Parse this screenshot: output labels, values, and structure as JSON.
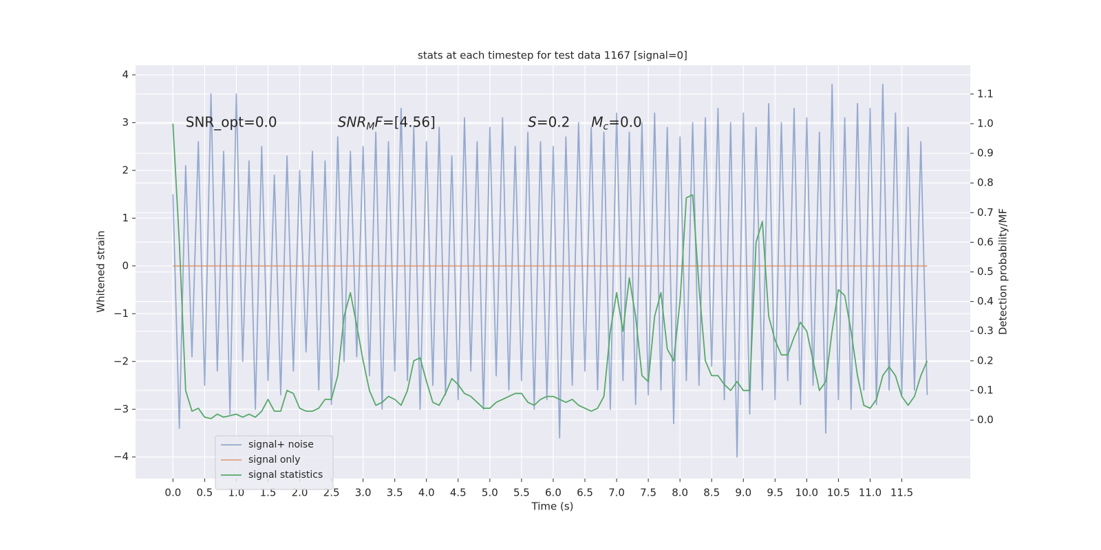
{
  "chart_data": {
    "type": "line",
    "title": "stats at each timestep for test data 1167 [signal=0]",
    "xlabel": "Time (s)",
    "ylabel": "Whitened strain",
    "y2label": "Detection probability/MF",
    "x": [
      0,
      0.1,
      0.2,
      0.3,
      0.4,
      0.5,
      0.6,
      0.7,
      0.8,
      0.9,
      1,
      1.1,
      1.2,
      1.3,
      1.4,
      1.5,
      1.6,
      1.7,
      1.8,
      1.9,
      2,
      2.1,
      2.2,
      2.3,
      2.4,
      2.5,
      2.6,
      2.7,
      2.8,
      2.9,
      3,
      3.1,
      3.2,
      3.3,
      3.4,
      3.5,
      3.6,
      3.7,
      3.8,
      3.9,
      4,
      4.1,
      4.2,
      4.3,
      4.4,
      4.5,
      4.6,
      4.7,
      4.8,
      4.9,
      5,
      5.1,
      5.2,
      5.3,
      5.4,
      5.5,
      5.6,
      5.7,
      5.8,
      5.9,
      6,
      6.1,
      6.2,
      6.3,
      6.4,
      6.5,
      6.6,
      6.7,
      6.8,
      6.9,
      7,
      7.1,
      7.2,
      7.3,
      7.4,
      7.5,
      7.6,
      7.7,
      7.8,
      7.9,
      8,
      8.1,
      8.2,
      8.3,
      8.4,
      8.5,
      8.6,
      8.7,
      8.8,
      8.9,
      9,
      9.1,
      9.2,
      9.3,
      9.4,
      9.5,
      9.6,
      9.7,
      9.8,
      9.9,
      10,
      10.1,
      10.2,
      10.3,
      10.4,
      10.5,
      10.6,
      10.7,
      10.8,
      10.9,
      11,
      11.1,
      11.2,
      11.3,
      11.4,
      11.5,
      11.6,
      11.7,
      11.8,
      11.9
    ],
    "series": [
      {
        "name": "signal+ noise",
        "color": "#4c72b0",
        "opacity": 0.55,
        "axis": "y",
        "values": [
          1.5,
          -3.4,
          2.1,
          -1.9,
          2.6,
          -2.5,
          3.6,
          -2.2,
          2.4,
          -3.1,
          3.6,
          -2.0,
          2.2,
          -3.0,
          2.5,
          -2.4,
          1.9,
          -2.7,
          2.3,
          -2.2,
          2.0,
          -1.8,
          2.4,
          -2.6,
          2.2,
          -2.9,
          2.7,
          -2.0,
          2.4,
          -1.9,
          2.5,
          -2.3,
          2.8,
          -3.0,
          2.6,
          -2.2,
          3.3,
          -2.4,
          2.9,
          -3.0,
          2.6,
          -2.5,
          2.9,
          -2.7,
          2.3,
          -2.8,
          3.1,
          -2.2,
          2.6,
          -3.0,
          2.9,
          -2.3,
          3.1,
          -2.6,
          2.5,
          -2.4,
          2.8,
          -3.0,
          2.6,
          -2.8,
          2.5,
          -3.6,
          2.7,
          -2.5,
          3.0,
          -2.2,
          2.9,
          -2.6,
          2.8,
          -3.0,
          3.2,
          -2.4,
          2.8,
          -2.9,
          3.0,
          -2.7,
          3.2,
          -2.6,
          2.9,
          -3.3,
          2.7,
          -2.4,
          3.0,
          -2.5,
          3.1,
          -2.1,
          3.3,
          -2.8,
          3.0,
          -4.0,
          3.2,
          -3.1,
          2.9,
          -2.6,
          3.4,
          -2.8,
          3.0,
          -2.4,
          3.3,
          -2.9,
          3.1,
          -2.5,
          2.8,
          -3.5,
          3.8,
          -2.8,
          3.1,
          -3.0,
          3.4,
          -2.6,
          3.3,
          -2.9,
          3.8,
          -2.6,
          3.2,
          -2.7,
          2.9,
          -2.6,
          2.6,
          -2.7
        ]
      },
      {
        "name": "signal only",
        "color": "#dd8452",
        "opacity": 0.7,
        "axis": "y",
        "values": [
          0,
          0,
          0,
          0,
          0,
          0,
          0,
          0,
          0,
          0,
          0,
          0,
          0,
          0,
          0,
          0,
          0,
          0,
          0,
          0,
          0,
          0,
          0,
          0,
          0,
          0,
          0,
          0,
          0,
          0,
          0,
          0,
          0,
          0,
          0,
          0,
          0,
          0,
          0,
          0,
          0,
          0,
          0,
          0,
          0,
          0,
          0,
          0,
          0,
          0,
          0,
          0,
          0,
          0,
          0,
          0,
          0,
          0,
          0,
          0,
          0,
          0,
          0,
          0,
          0,
          0,
          0,
          0,
          0,
          0,
          0,
          0,
          0,
          0,
          0,
          0,
          0,
          0,
          0,
          0,
          0,
          0,
          0,
          0,
          0,
          0,
          0,
          0,
          0,
          0,
          0,
          0,
          0,
          0,
          0,
          0,
          0,
          0,
          0,
          0,
          0,
          0,
          0,
          0,
          0,
          0,
          0,
          0,
          0,
          0,
          0,
          0,
          0,
          0,
          0,
          0,
          0,
          0,
          0,
          0
        ]
      },
      {
        "name": "signal statistics",
        "color": "#55a868",
        "opacity": 1,
        "axis": "y2",
        "values": [
          1.0,
          0.6,
          0.1,
          0.03,
          0.04,
          0.01,
          0.005,
          0.02,
          0.01,
          0.015,
          0.02,
          0.01,
          0.02,
          0.01,
          0.03,
          0.07,
          0.03,
          0.03,
          0.1,
          0.09,
          0.04,
          0.03,
          0.03,
          0.04,
          0.07,
          0.07,
          0.15,
          0.35,
          0.43,
          0.32,
          0.2,
          0.1,
          0.05,
          0.06,
          0.08,
          0.07,
          0.05,
          0.1,
          0.2,
          0.21,
          0.13,
          0.06,
          0.05,
          0.09,
          0.14,
          0.12,
          0.09,
          0.08,
          0.06,
          0.04,
          0.04,
          0.06,
          0.07,
          0.08,
          0.09,
          0.09,
          0.06,
          0.05,
          0.07,
          0.08,
          0.08,
          0.07,
          0.06,
          0.07,
          0.05,
          0.04,
          0.03,
          0.04,
          0.08,
          0.3,
          0.43,
          0.3,
          0.48,
          0.35,
          0.15,
          0.13,
          0.35,
          0.43,
          0.24,
          0.2,
          0.4,
          0.75,
          0.76,
          0.45,
          0.2,
          0.15,
          0.15,
          0.12,
          0.1,
          0.13,
          0.1,
          0.1,
          0.6,
          0.67,
          0.35,
          0.27,
          0.22,
          0.22,
          0.28,
          0.33,
          0.3,
          0.2,
          0.1,
          0.13,
          0.3,
          0.44,
          0.42,
          0.3,
          0.15,
          0.05,
          0.04,
          0.07,
          0.15,
          0.18,
          0.15,
          0.08,
          0.05,
          0.08,
          0.15,
          0.2
        ]
      }
    ],
    "xlim": [
      -0.59,
      12.58
    ],
    "ylim": [
      -4.45,
      4.2
    ],
    "y2lim": [
      -0.197,
      1.197
    ],
    "xticks": [
      {
        "value": 0,
        "label": "0.0"
      },
      {
        "value": 0.5,
        "label": "0.5"
      },
      {
        "value": 1,
        "label": "1.0"
      },
      {
        "value": 1.5,
        "label": "1.5"
      },
      {
        "value": 2,
        "label": "2.0"
      },
      {
        "value": 2.5,
        "label": "2.5"
      },
      {
        "value": 3,
        "label": "3.0"
      },
      {
        "value": 3.5,
        "label": "3.5"
      },
      {
        "value": 4,
        "label": "4.0"
      },
      {
        "value": 4.5,
        "label": "4.5"
      },
      {
        "value": 5,
        "label": "5.0"
      },
      {
        "value": 5.5,
        "label": "5.5"
      },
      {
        "value": 6,
        "label": "6.0"
      },
      {
        "value": 6.5,
        "label": "6.5"
      },
      {
        "value": 7,
        "label": "7.0"
      },
      {
        "value": 7.5,
        "label": "7.5"
      },
      {
        "value": 8,
        "label": "8.0"
      },
      {
        "value": 8.5,
        "label": "8.5"
      },
      {
        "value": 9,
        "label": "9.0"
      },
      {
        "value": 9.5,
        "label": "9.5"
      },
      {
        "value": 10,
        "label": "10.0"
      },
      {
        "value": 10.5,
        "label": "10.5"
      },
      {
        "value": 11,
        "label": "11.0"
      },
      {
        "value": 11.5,
        "label": "11.5"
      }
    ],
    "yticks": [
      {
        "value": -4,
        "label": "−4"
      },
      {
        "value": -3,
        "label": "−3"
      },
      {
        "value": -2,
        "label": "−2"
      },
      {
        "value": -1,
        "label": "−1"
      },
      0,
      1,
      2,
      3,
      4
    ],
    "y2ticks": [
      {
        "value": 0,
        "label": "0.0"
      },
      {
        "value": 0.1,
        "label": "0.1"
      },
      {
        "value": 0.2,
        "label": "0.2"
      },
      {
        "value": 0.3,
        "label": "0.3"
      },
      {
        "value": 0.4,
        "label": "0.4"
      },
      {
        "value": 0.5,
        "label": "0.5"
      },
      {
        "value": 0.6,
        "label": "0.6"
      },
      {
        "value": 0.7,
        "label": "0.7"
      },
      {
        "value": 0.8,
        "label": "0.8"
      },
      {
        "value": 0.9,
        "label": "0.9"
      },
      {
        "value": 1,
        "label": "1.0"
      },
      {
        "value": 1.1,
        "label": "1.1"
      }
    ],
    "grid": true,
    "legend": "lower left",
    "annotations": [
      {
        "parts": [
          {
            "text": "SNR_opt=0.0",
            "style": "normal"
          }
        ]
      },
      {
        "parts": [
          {
            "text": "SNR",
            "style": "italic"
          },
          {
            "text": "M",
            "style": "sub"
          },
          {
            "text": "F",
            "style": "italic"
          },
          {
            "text": "=[4.56]",
            "style": "normal"
          }
        ]
      },
      {
        "parts": [
          {
            "text": "S",
            "style": "italic"
          },
          {
            "text": "=0.2",
            "style": "normal"
          }
        ]
      },
      {
        "parts": [
          {
            "text": "M",
            "style": "italic"
          },
          {
            "text": "c",
            "style": "sub"
          },
          {
            "text": "=0.0",
            "style": "normal"
          }
        ]
      }
    ]
  }
}
